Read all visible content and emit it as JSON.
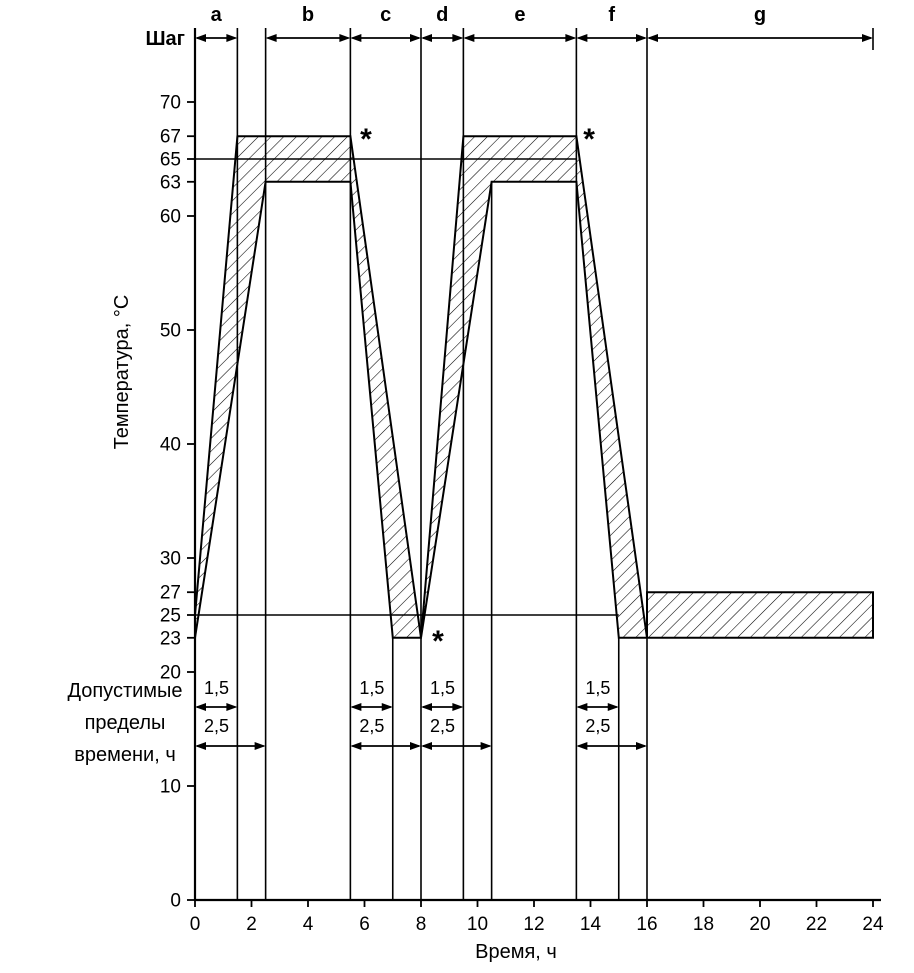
{
  "page": {
    "background_color": "#ffffff",
    "ink_color": "#000000"
  },
  "chart_data": {
    "type": "area",
    "description": "Cyclic temperature test profile with hatched tolerance bands",
    "xlabel": "Время, ч",
    "ylabel": "Температура, °С",
    "step_row_label": "Шаг",
    "left_annotation_lines": [
      "Допустимые",
      "пределы",
      "времени, ч"
    ],
    "xlim": [
      0,
      24
    ],
    "ylim": [
      0,
      70
    ],
    "x_ticks": [
      0,
      2,
      4,
      6,
      8,
      10,
      12,
      14,
      16,
      18,
      20,
      22,
      24
    ],
    "y_ticks": [
      0,
      10,
      20,
      23,
      25,
      27,
      30,
      40,
      50,
      60,
      63,
      65,
      67,
      70
    ],
    "grid": false,
    "steps": [
      {
        "label": "a",
        "from": 0,
        "to": 1.5
      },
      {
        "label": "b",
        "from": 2.5,
        "to": 5.5
      },
      {
        "label": "c",
        "from": 5.5,
        "to": 8
      },
      {
        "label": "d",
        "from": 8,
        "to": 9.5
      },
      {
        "label": "e",
        "from": 9.5,
        "to": 13.5
      },
      {
        "label": "f",
        "from": 13.5,
        "to": 16
      },
      {
        "label": "g",
        "from": 16,
        "to": 24
      }
    ],
    "boundary_lines_t": [
      1.5,
      2.5,
      5.5,
      8,
      9.5,
      13.5,
      16
    ],
    "partial_boundary_lines": [
      {
        "t": 7,
        "from_temp": 23
      },
      {
        "t": 10.5,
        "from_temp": 63
      },
      {
        "t": 15,
        "from_temp": 23
      }
    ],
    "reference_lines": [
      {
        "temp": 65,
        "from": 0,
        "to": 13.5
      },
      {
        "temp": 25,
        "from": 0,
        "to": 15
      }
    ],
    "tolerance_band": {
      "upper_hold_range_c": [
        63,
        67
      ],
      "lower_hold_range_c": [
        23,
        27
      ],
      "nominal_upper_c": 65,
      "nominal_lower_c": 25,
      "polygon_t_temp": [
        [
          0,
          25
        ],
        [
          1.5,
          67
        ],
        [
          5.5,
          67
        ],
        [
          8,
          23
        ],
        [
          9.5,
          67
        ],
        [
          13.5,
          67
        ],
        [
          16,
          23
        ],
        [
          16,
          27
        ],
        [
          24,
          27
        ],
        [
          24,
          23
        ],
        [
          15,
          23
        ],
        [
          13.5,
          63
        ],
        [
          10.5,
          63
        ],
        [
          8,
          23
        ],
        [
          7,
          23
        ],
        [
          5.5,
          63
        ],
        [
          2.5,
          63
        ],
        [
          0,
          23
        ]
      ]
    },
    "time_tolerances": [
      {
        "from": 0,
        "rows": [
          {
            "label": "1,5",
            "to": 1.5
          },
          {
            "label": "2,5",
            "to": 2.5
          }
        ]
      },
      {
        "from": 5.5,
        "rows": [
          {
            "label": "1,5",
            "to": 7
          },
          {
            "label": "2,5",
            "to": 8
          }
        ]
      },
      {
        "from": 8,
        "rows": [
          {
            "label": "1,5",
            "to": 9.5
          },
          {
            "label": "2,5",
            "to": 10.5
          }
        ]
      },
      {
        "from": 13.5,
        "rows": [
          {
            "label": "1,5",
            "to": 15
          },
          {
            "label": "2,5",
            "to": 16
          }
        ]
      }
    ],
    "asterisks": [
      {
        "symbol": "*",
        "t": 6.05,
        "temp": 67
      },
      {
        "symbol": "*",
        "t": 13.95,
        "temp": 67
      },
      {
        "symbol": "*",
        "t": 8.6,
        "temp": 23
      }
    ]
  }
}
